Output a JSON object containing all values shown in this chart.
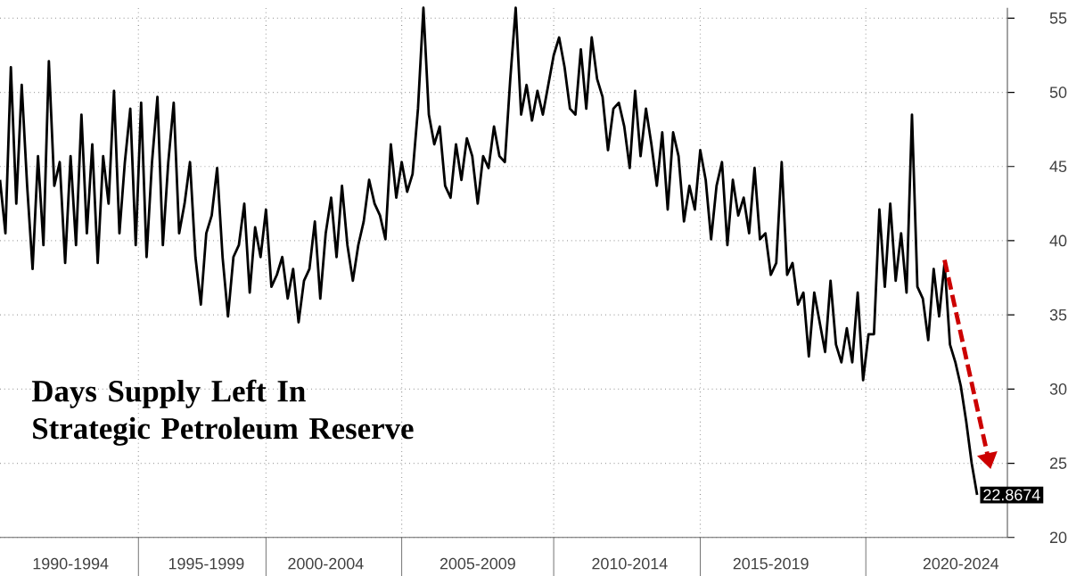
{
  "chart_data": {
    "type": "line",
    "title": "Days Supply Left In Strategic Petroleum Reserve",
    "categories": [
      null,
      null,
      null,
      null,
      null,
      null,
      null,
      null,
      null,
      null,
      null,
      null,
      null,
      "1990-1994",
      null,
      null,
      null,
      null,
      null,
      null,
      null,
      null,
      null,
      null,
      null,
      null,
      null,
      null,
      null,
      null,
      null,
      null,
      null,
      null,
      null,
      null,
      null,
      null,
      "1995-1999",
      null,
      null,
      null,
      null,
      null,
      null,
      null,
      null,
      null,
      null,
      null,
      null,
      null,
      null,
      null,
      null,
      null,
      null,
      null,
      null,
      null,
      "2000-2004",
      null,
      null,
      null,
      null,
      null,
      null,
      null,
      null,
      null,
      null,
      null,
      null,
      null,
      null,
      null,
      null,
      null,
      null,
      null,
      null,
      null,
      null,
      null,
      null,
      null,
      null,
      null,
      "2005-2009",
      null,
      null,
      null,
      null,
      null,
      null,
      null,
      null,
      null,
      null,
      null,
      null,
      null,
      null,
      null,
      null,
      null,
      null,
      null,
      null,
      null,
      null,
      null,
      null,
      null,
      null,
      null,
      "2010-2014",
      null,
      null,
      null,
      null,
      null,
      null,
      null,
      null,
      null,
      null,
      null,
      null,
      null,
      null,
      null,
      null,
      null,
      null,
      null,
      null,
      null,
      null,
      null,
      null,
      null,
      "2015-2019",
      null,
      null,
      null,
      null,
      null,
      null,
      null,
      null,
      null,
      null,
      null,
      null,
      null,
      null,
      null,
      null,
      null,
      null,
      null,
      null,
      null,
      null,
      null,
      null,
      null,
      null,
      null,
      null,
      null,
      null,
      null,
      null,
      null,
      null,
      "2020-2024",
      null,
      null,
      null
    ],
    "ylim": [
      20,
      55.7
    ],
    "yticks": [
      20,
      25,
      30,
      35,
      40,
      45,
      50,
      55
    ],
    "grid": true,
    "marker": "none",
    "line_style": "solid",
    "series": [
      {
        "color": "#000000",
        "values": [
          44.1,
          40.5,
          51.7,
          42.5,
          50.5,
          43.7,
          38.1,
          45.7,
          39.7,
          52.1,
          43.7,
          45.3,
          38.5,
          45.7,
          39.7,
          48.5,
          40.5,
          46.5,
          38.5,
          45.7,
          42.5,
          50.1,
          40.5,
          45.3,
          48.9,
          39.7,
          49.3,
          38.9,
          45.3,
          49.7,
          39.7,
          45.3,
          49.3,
          40.5,
          42.5,
          45.3,
          38.9,
          35.7,
          40.5,
          41.7,
          44.9,
          38.9,
          34.9,
          38.9,
          39.7,
          42.5,
          36.5,
          40.9,
          38.9,
          42.1,
          36.9,
          37.7,
          38.9,
          36.1,
          38.1,
          34.5,
          37.3,
          38.1,
          41.3,
          36.1,
          40.5,
          42.9,
          38.9,
          43.7,
          39.7,
          37.3,
          39.7,
          41.3,
          44.1,
          42.5,
          41.7,
          40.1,
          46.5,
          42.9,
          45.3,
          43.3,
          44.5,
          48.9,
          55.7,
          48.5,
          46.5,
          47.7,
          43.7,
          42.9,
          46.5,
          44.1,
          46.9,
          45.7,
          42.5,
          45.7,
          44.9,
          47.7,
          45.7,
          45.3,
          50.9,
          55.7,
          48.5,
          50.5,
          48.1,
          50.1,
          48.5,
          50.5,
          52.5,
          53.7,
          51.7,
          48.9,
          48.5,
          52.9,
          48.9,
          53.7,
          50.9,
          49.7,
          46.1,
          48.9,
          49.3,
          47.7,
          44.9,
          50.1,
          45.7,
          48.9,
          46.5,
          43.7,
          47.3,
          42.1,
          47.3,
          45.7,
          41.3,
          43.7,
          42.1,
          46.1,
          44.1,
          40.1,
          43.7,
          45.3,
          39.7,
          44.1,
          41.7,
          42.9,
          40.5,
          44.9,
          40.1,
          40.5,
          37.7,
          38.5,
          45.3,
          37.7,
          38.5,
          35.7,
          36.5,
          32.2,
          36.5,
          34.5,
          32.5,
          37.3,
          33.0,
          31.8,
          34.1,
          31.8,
          36.5,
          30.6,
          33.7,
          33.7,
          42.1,
          36.9,
          42.5,
          37.3,
          40.5,
          36.5,
          48.5,
          36.9,
          36.1,
          33.3,
          38.1,
          34.9,
          38.5,
          33.0,
          31.8,
          30.2,
          27.8,
          25.0,
          22.8674
        ],
        "value_labels": [
          null,
          null,
          null,
          null,
          null,
          null,
          null,
          null,
          null,
          null,
          null,
          null,
          null,
          null,
          null,
          null,
          null,
          null,
          null,
          null,
          null,
          null,
          null,
          null,
          null,
          null,
          null,
          null,
          null,
          null,
          null,
          null,
          null,
          null,
          null,
          null,
          null,
          null,
          null,
          null,
          null,
          null,
          null,
          null,
          null,
          null,
          null,
          null,
          null,
          null,
          null,
          null,
          null,
          null,
          null,
          null,
          null,
          null,
          null,
          null,
          null,
          null,
          null,
          null,
          null,
          null,
          null,
          null,
          null,
          null,
          null,
          null,
          null,
          null,
          null,
          null,
          null,
          null,
          null,
          null,
          null,
          null,
          null,
          null,
          null,
          null,
          null,
          null,
          null,
          null,
          null,
          null,
          null,
          null,
          null,
          null,
          null,
          null,
          null,
          null,
          null,
          null,
          null,
          null,
          null,
          null,
          null,
          null,
          null,
          null,
          null,
          null,
          null,
          null,
          null,
          null,
          null,
          null,
          null,
          null,
          null,
          null,
          null,
          null,
          null,
          null,
          null,
          null,
          null,
          null,
          null,
          null,
          null,
          null,
          null,
          null,
          null,
          null,
          null,
          null,
          null,
          null,
          null,
          null,
          null,
          null,
          null,
          null,
          null,
          null,
          null,
          null,
          null,
          null,
          null,
          null,
          null,
          null,
          null,
          null,
          null,
          null,
          null,
          null,
          null,
          null,
          null,
          null,
          null,
          null,
          null,
          null,
          null,
          null,
          null,
          null,
          null,
          null,
          null,
          null,
          "22.8674"
        ]
      }
    ]
  }
}
